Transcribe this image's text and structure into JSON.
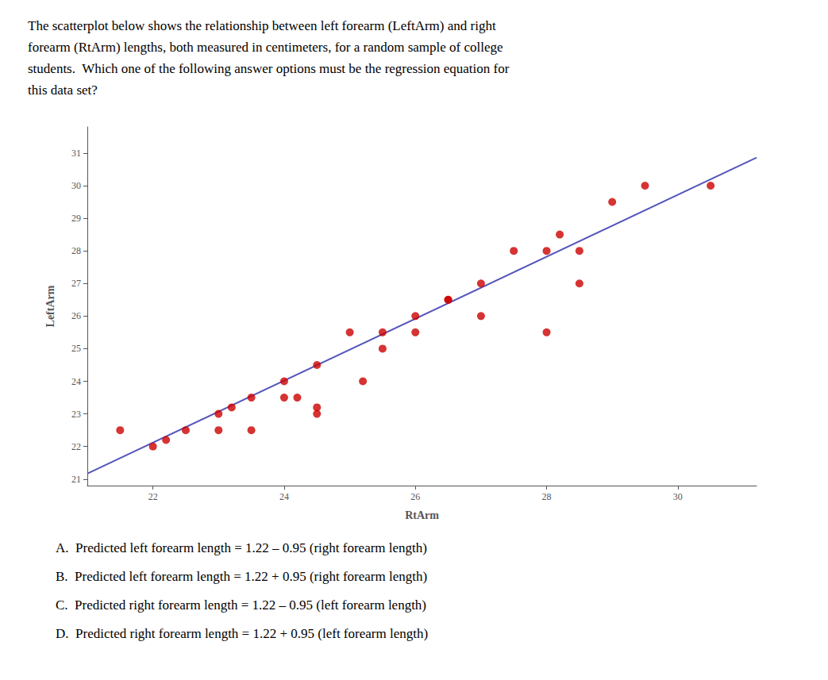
{
  "chart_data": {
    "type": "scatter",
    "title": "The scatterplot below shows the relationship between left forearm (LeftArm) and right\nforearm (RtArm) lengths, both measured in centimeters, for a random sample of college\nstudents.  Which one of the following answer options must be the regression equation for\nthis data set?",
    "xlabel": "RtArm",
    "ylabel": "LeftArm",
    "series": [
      {
        "type": "scatter",
        "color": "#cc0000",
        "marker": "circle",
        "x": [
          21.5,
          22.0,
          22.2,
          22.5,
          23.0,
          23.0,
          23.2,
          23.5,
          23.5,
          24.0,
          24.0,
          24.2,
          24.5,
          24.5,
          24.5,
          25.0,
          25.2,
          25.5,
          25.5,
          26.0,
          26.0,
          26.5,
          26.5,
          27.0,
          27.0,
          27.5,
          28.0,
          28.0,
          28.2,
          28.5,
          28.5,
          29.0,
          29.5,
          30.5
        ],
        "values": [
          22.5,
          22.0,
          22.2,
          22.5,
          23.0,
          22.5,
          23.2,
          23.5,
          22.5,
          24.0,
          23.5,
          23.5,
          23.0,
          23.2,
          24.5,
          25.5,
          24.0,
          25.0,
          25.5,
          26.0,
          25.5,
          26.5,
          26.5,
          27.0,
          26.0,
          28.0,
          28.0,
          25.5,
          28.5,
          27.0,
          28.0,
          29.5,
          30.0,
          30.0
        ]
      },
      {
        "type": "line",
        "color": "#5555bb",
        "line_style": "solid",
        "x": [
          21.0,
          31.2
        ],
        "values": [
          21.17,
          30.86
        ]
      }
    ],
    "xlim": [
      21.0,
      31.2
    ],
    "ylim": [
      20.8,
      31.8
    ],
    "xticks": [
      22,
      24,
      26,
      28,
      30
    ],
    "yticks": [
      21,
      22,
      23,
      24,
      25,
      26,
      27,
      28,
      29,
      30,
      31
    ],
    "grid": false,
    "annotations": [
      "A.  Predicted left forearm length = 1.22 – 0.95 (right forearm length)",
      "B.  Predicted left forearm length = 1.22 + 0.95 (right forearm length)",
      "C.  Predicted right forearm length = 1.22 – 0.95 (left forearm length)",
      "D.  Predicted right forearm length = 1.22 + 0.95 (left forearm length)"
    ]
  }
}
